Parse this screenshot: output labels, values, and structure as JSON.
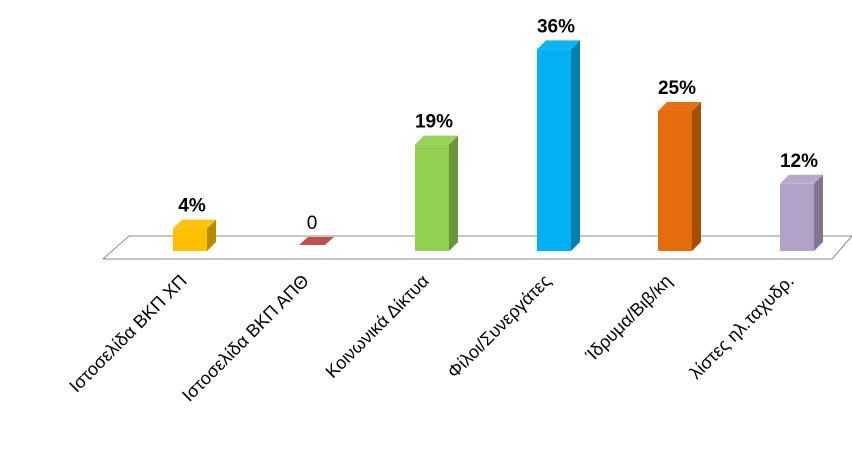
{
  "chart_data": {
    "type": "bar",
    "categories": [
      "Ιστοσελίδα ΒΚΠ ΧΠ",
      "Ιστοσελίδα ΒΚΠ ΑΠΘ",
      "Κοινωνικά Δίκτυα",
      "Φίλοι/Συνεργάτες",
      "Ίδρυμα/Βιβ/κη",
      "λίστες ηλ.ταχυδρ."
    ],
    "values": [
      4,
      0,
      19,
      36,
      25,
      12
    ],
    "data_labels": [
      "4%",
      "0",
      "19%",
      "36%",
      "25%",
      "12%"
    ],
    "colors": [
      "#FFC000",
      "#C0504D",
      "#92D050",
      "#00B0F0",
      "#E46C0A",
      "#B3A2C7"
    ],
    "ylim": [
      0,
      36
    ],
    "grid": false,
    "legend": "none",
    "style": "3d-column"
  }
}
